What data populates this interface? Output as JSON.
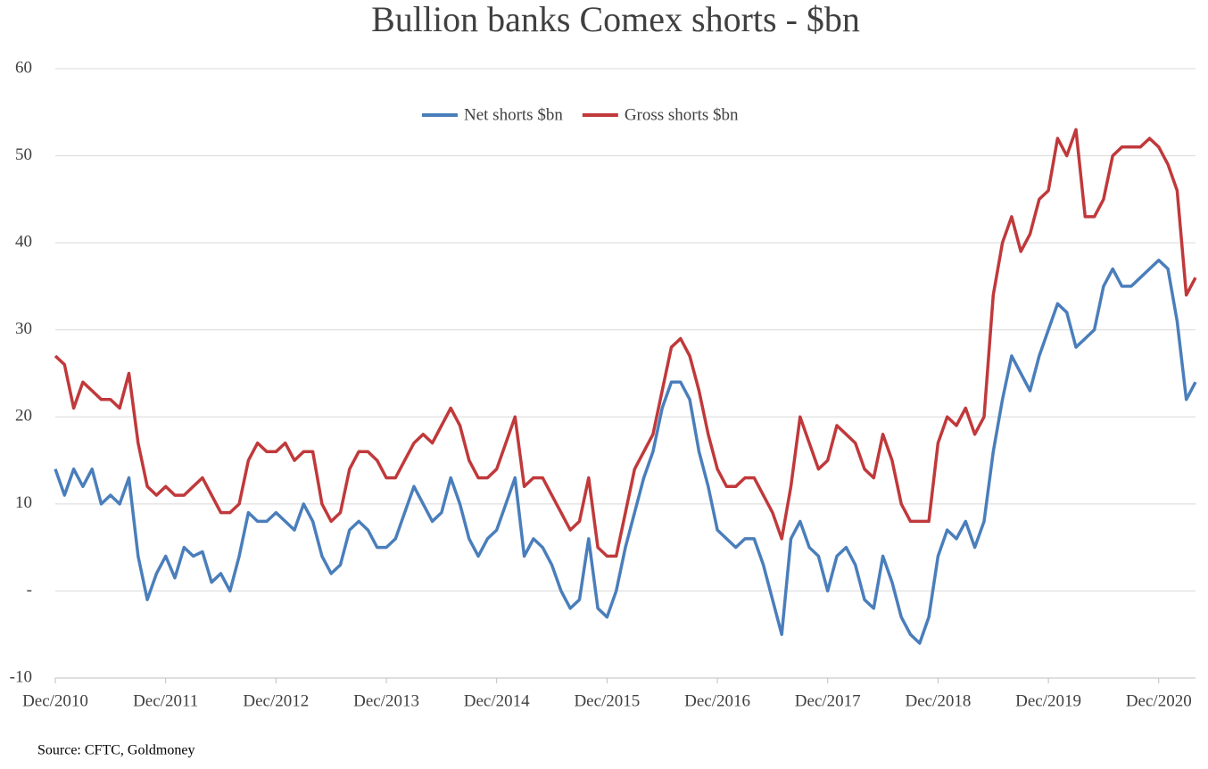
{
  "chart_data": {
    "type": "line",
    "title": "Bullion banks Comex shorts - $bn",
    "source": "Source: CFTC, Goldmoney",
    "categories": [
      "Dec/2010",
      null,
      null,
      null,
      null,
      null,
      null,
      null,
      null,
      null,
      null,
      null,
      "Dec/2011",
      null,
      null,
      null,
      null,
      null,
      null,
      null,
      null,
      null,
      null,
      null,
      "Dec/2012",
      null,
      null,
      null,
      null,
      null,
      null,
      null,
      null,
      null,
      null,
      null,
      "Dec/2013",
      null,
      null,
      null,
      null,
      null,
      null,
      null,
      null,
      null,
      null,
      null,
      "Dec/2014",
      null,
      null,
      null,
      null,
      null,
      null,
      null,
      null,
      null,
      null,
      null,
      "Dec/2015",
      null,
      null,
      null,
      null,
      null,
      null,
      null,
      null,
      null,
      null,
      null,
      "Dec/2016",
      null,
      null,
      null,
      null,
      null,
      null,
      null,
      null,
      null,
      null,
      null,
      "Dec/2017",
      null,
      null,
      null,
      null,
      null,
      null,
      null,
      null,
      null,
      null,
      null,
      "Dec/2018",
      null,
      null,
      null,
      null,
      null,
      null,
      null,
      null,
      null,
      null,
      null,
      "Dec/2019",
      null,
      null,
      null,
      null,
      null,
      null,
      null,
      null,
      null,
      null,
      null,
      "Dec/2020",
      null,
      null,
      null,
      null
    ],
    "series": [
      {
        "name": "Net shorts $bn",
        "color": "#4a7ebb",
        "values": [
          14,
          11,
          14,
          12,
          14,
          10,
          11,
          10,
          13,
          4,
          -1,
          2,
          4,
          1.5,
          5,
          4,
          4.5,
          1,
          2,
          0,
          4,
          9,
          8,
          8,
          9,
          8,
          7,
          10,
          8,
          4,
          2,
          3,
          7,
          8,
          7,
          5,
          5,
          6,
          9,
          12,
          10,
          8,
          9,
          13,
          10,
          6,
          4,
          6,
          7,
          10,
          13,
          4,
          6,
          5,
          3,
          0,
          -2,
          -1,
          6,
          -2,
          -3,
          0,
          5,
          9,
          13,
          16,
          21,
          24,
          24,
          22,
          16,
          12,
          7,
          6,
          5,
          6,
          6,
          3,
          -1,
          -5,
          6,
          8,
          5,
          4,
          0,
          4,
          5,
          3,
          -1,
          -2,
          4,
          1,
          -3,
          -5,
          -6,
          -3,
          4,
          7,
          6,
          8,
          5,
          8,
          16,
          22,
          27,
          25,
          23,
          27,
          30,
          33,
          32,
          28,
          29,
          30,
          35,
          37,
          35,
          35,
          36,
          37,
          38,
          37,
          31,
          22,
          24
        ]
      },
      {
        "name": "Gross shorts $bn",
        "color": "#c0393b",
        "values": [
          27,
          26,
          21,
          24,
          23,
          22,
          22,
          21,
          25,
          17,
          12,
          11,
          12,
          11,
          11,
          12,
          13,
          11,
          9,
          9,
          10,
          15,
          17,
          16,
          16,
          17,
          15,
          16,
          16,
          10,
          8,
          9,
          14,
          16,
          16,
          15,
          13,
          13,
          15,
          17,
          18,
          17,
          19,
          21,
          19,
          15,
          13,
          13,
          14,
          17,
          20,
          12,
          13,
          13,
          11,
          9,
          7,
          8,
          13,
          5,
          4,
          4,
          9,
          14,
          16,
          18,
          23,
          28,
          29,
          27,
          23,
          18,
          14,
          12,
          12,
          13,
          13,
          11,
          9,
          6,
          12,
          20,
          17,
          14,
          15,
          19,
          18,
          17,
          14,
          13,
          18,
          15,
          10,
          8,
          8,
          8,
          17,
          20,
          19,
          21,
          18,
          20,
          34,
          40,
          43,
          39,
          41,
          45,
          46,
          52,
          50,
          53,
          43,
          43,
          45,
          50,
          51,
          51,
          51,
          52,
          51,
          49,
          46,
          34,
          36
        ]
      }
    ],
    "ylim": [
      -10,
      60
    ],
    "yticks": [
      -10,
      {
        "value": 0,
        "label": "-"
      },
      10,
      20,
      30,
      40,
      50,
      60
    ],
    "grid": true,
    "legend": "top"
  }
}
